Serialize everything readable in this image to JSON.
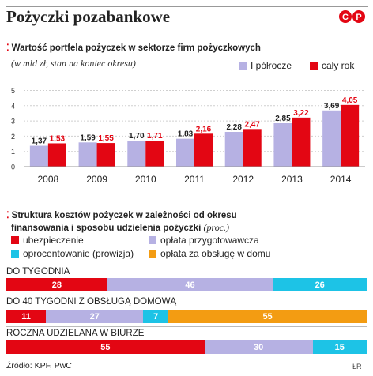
{
  "title": "Pożyczki pozabankowe",
  "logo_text": "©P",
  "colors": {
    "red": "#e30613",
    "lavender": "#b6b1e3",
    "cyan": "#1dc3e6",
    "orange": "#f39c12"
  },
  "section1": {
    "heading": "Wartość portfela pożyczek w sektorze firm pożyczkowych",
    "subtitle": "(w mld zł, stan na koniec okresu)",
    "legend": [
      {
        "label": "I półrocze",
        "color": "#b6b1e3"
      },
      {
        "label": "cały rok",
        "color": "#e30613"
      }
    ]
  },
  "section2": {
    "heading_line1": "Struktura kosztów pożyczek w zależności od okresu",
    "heading_line2": "finansowania i sposobu udzielenia pożyczki",
    "heading_suffix": "(proc.)",
    "legend": [
      {
        "label": "ubezpieczenie",
        "color": "#e30613"
      },
      {
        "label": "opłata przygotowawcza",
        "color": "#b6b1e3"
      },
      {
        "label": "oprocentowanie (prowizja)",
        "color": "#1dc3e6"
      },
      {
        "label": "opłata za obsługę w domu",
        "color": "#f39c12"
      }
    ]
  },
  "chart_data": [
    {
      "type": "bar",
      "categories": [
        "2008",
        "2009",
        "2010",
        "2011",
        "2012",
        "2013",
        "2014"
      ],
      "series": [
        {
          "name": "I półrocze",
          "values": [
            1.37,
            1.59,
            1.7,
            1.83,
            2.28,
            2.85,
            3.69
          ],
          "labels": [
            "1,37",
            "1,59",
            "1,70",
            "1,83",
            "2,28",
            "2,85",
            "3,69"
          ],
          "color": "#b6b1e3",
          "label_color": "#222222"
        },
        {
          "name": "cały rok",
          "values": [
            1.53,
            1.55,
            1.71,
            2.16,
            2.47,
            3.22,
            4.05
          ],
          "labels": [
            "1,53",
            "1,55",
            "1,71",
            "2,16",
            "2,47",
            "3,22",
            "4,05"
          ],
          "color": "#e30613",
          "label_color": "#e30613"
        }
      ],
      "yticks": [
        "0",
        "1",
        "2",
        "3",
        "4",
        "5"
      ],
      "ylim": [
        0,
        5
      ],
      "grid": true,
      "title": "Wartość portfela pożyczek w sektorze firm pożyczkowych",
      "ylabel": "w mld zł"
    },
    {
      "type": "bar",
      "stacked": "horizontal-100",
      "categories": [
        "DO TYGODNIA",
        "DO 40 TYGODNI Z OBSŁUGĄ DOMOWĄ",
        "ROCZNA UDZIELANA W BIURZE"
      ],
      "series_order": [
        "ubezpieczenie",
        "opłata przygotowawcza",
        "oprocentowanie (prowizja)",
        "opłata za obsługę w domu"
      ],
      "rows": [
        {
          "label": "DO TYGODNIA",
          "segments": [
            {
              "series": "ubezpieczenie",
              "value": 28
            },
            {
              "series": "opłata przygotowawcza",
              "value": 46
            },
            {
              "series": "oprocentowanie (prowizja)",
              "value": 26
            }
          ]
        },
        {
          "label": "DO 40 TYGODNI Z OBSŁUGĄ DOMOWĄ",
          "segments": [
            {
              "series": "ubezpieczenie",
              "value": 11
            },
            {
              "series": "opłata przygotowawcza",
              "value": 27
            },
            {
              "series": "oprocentowanie (prowizja)",
              "value": 7
            },
            {
              "series": "opłata za obsługę w domu",
              "value": 55
            }
          ]
        },
        {
          "label": "ROCZNA UDZIELANA W BIURZE",
          "segments": [
            {
              "series": "ubezpieczenie",
              "value": 55
            },
            {
              "series": "opłata przygotowawcza",
              "value": 30
            },
            {
              "series": "oprocentowanie (prowizja)",
              "value": 15
            }
          ]
        }
      ],
      "unit": "proc."
    }
  ],
  "footer": {
    "source": "Źródło: KPF, PwC",
    "signature": "ŁR"
  }
}
